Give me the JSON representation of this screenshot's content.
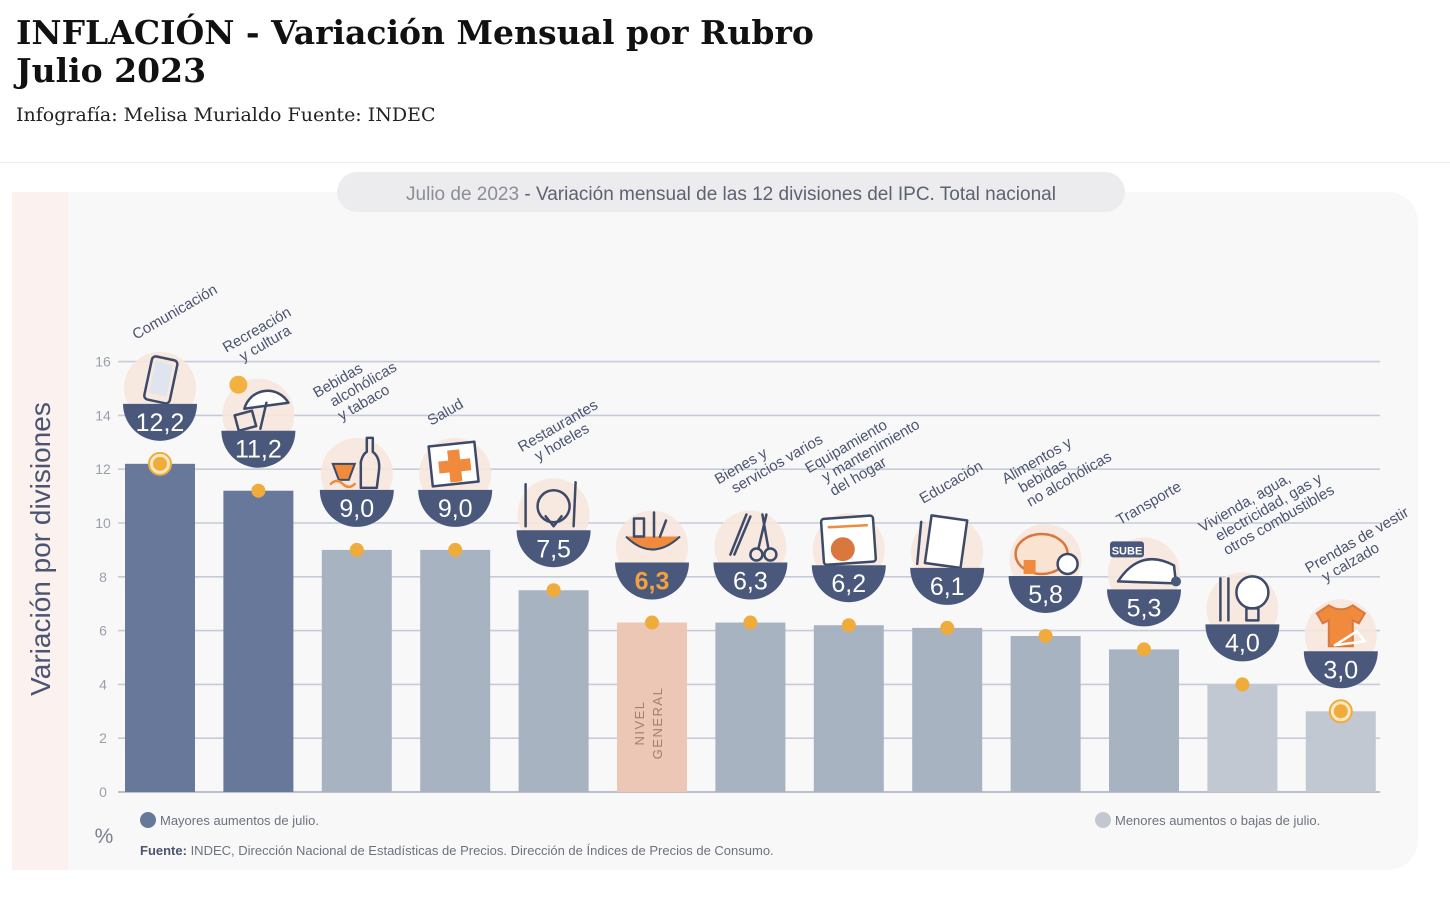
{
  "header": {
    "title_line1": "INFLACIÓN - Variación Mensual por Rubro",
    "title_line2": "Julio 2023",
    "credit": "Infografía: Melisa Murialdo Fuente: INDEC"
  },
  "chart_data": {
    "type": "bar",
    "title_prefix": "Julio de 2023",
    "title_rest": " - Variación mensual de las 12 divisiones del IPC. Total nacional",
    "ylabel": "Variación por divisiones",
    "yunit": "%",
    "ylim": [
      0,
      16
    ],
    "yticks": [
      "0",
      "2",
      "4",
      "6",
      "8",
      "10",
      "12",
      "14",
      "16"
    ],
    "grid": true,
    "categories": [
      "Comunicación",
      "Recreación y cultura",
      "Bebidas alcohólicas y tabaco",
      "Salud",
      "Restaurantes y hoteles",
      "Nivel general",
      "Bienes y servicios varios",
      "Equipamiento y mantenimiento del hogar",
      "Educación",
      "Alimentos y bebidas no alcohólicas",
      "Transporte",
      "Vivienda, agua, electricidad, gas y otros combustibles",
      "Prendas de vestir y calzado"
    ],
    "values": [
      12.2,
      11.2,
      9.0,
      9.0,
      7.5,
      6.3,
      6.3,
      6.2,
      6.1,
      5.8,
      5.3,
      4.0,
      3.0
    ],
    "value_labels": [
      "12,2",
      "11,2",
      "9,0",
      "9,0",
      "7,5",
      "6,3",
      "6,3",
      "6,2",
      "6,1",
      "5,8",
      "5,3",
      "4,0",
      "3,0"
    ],
    "category_labels": [
      [
        "Comunicación"
      ],
      [
        "Recreación",
        "y cultura"
      ],
      [
        "Bebidas",
        "alcohólicas",
        "y tabaco"
      ],
      [
        "Salud"
      ],
      [
        "Restaurantes",
        "y hoteles"
      ],
      [],
      [
        "Bienes y",
        "servicios varios"
      ],
      [
        "Equipamiento",
        "y mantenimiento",
        "del hogar"
      ],
      [
        "Educación"
      ],
      [
        "Alimentos y",
        "bebidas",
        "no alcohólicas"
      ],
      [
        "Transporte"
      ],
      [
        "Vivienda, agua,",
        "electricidad, gas y",
        "otros combustibles"
      ],
      [
        "Prendas de vestir",
        "y calzado"
      ]
    ],
    "nivel_general_label": [
      "NIVEL",
      "GENERAL"
    ],
    "groups": [
      "mayor",
      "mayor",
      "medio",
      "medio",
      "medio",
      "general",
      "medio",
      "medio",
      "medio",
      "medio",
      "medio",
      "menor",
      "menor"
    ],
    "highlighted_markers": [
      0,
      12
    ],
    "icons": [
      "smartphone-icon",
      "beach-umbrella-icon",
      "wine-bottle-icon",
      "medical-cross-icon",
      "cutlery-plate-icon",
      "shopping-bag-icon",
      "comb-scissors-icon",
      "washing-machine-icon",
      "notebook-icon",
      "chicken-icon",
      "bus-icon",
      "light-bulb-icon",
      "tshirt-icon"
    ],
    "icon_extra_text": {
      "transporte": "SUBE"
    },
    "legend": {
      "position": "bottom",
      "mayores": "Mayores aumentos de julio.",
      "menores": "Menores aumentos o bajas de julio."
    },
    "source_label": "Fuente:",
    "source_text": " INDEC, Dirección Nacional de Estadísticas de Precios. Dirección de Índices de Precios de Consumo.",
    "colors": {
      "mayor": "#67789b",
      "medio": "#a8b3c2",
      "menor": "#c2c8d1",
      "general": "#ecc7b5",
      "badge": "#4a587b",
      "badge_highlight": "#f2a141",
      "marker": "#f0ac3a",
      "accent": "#f08a3c",
      "panel": "#f8f8f9"
    }
  }
}
